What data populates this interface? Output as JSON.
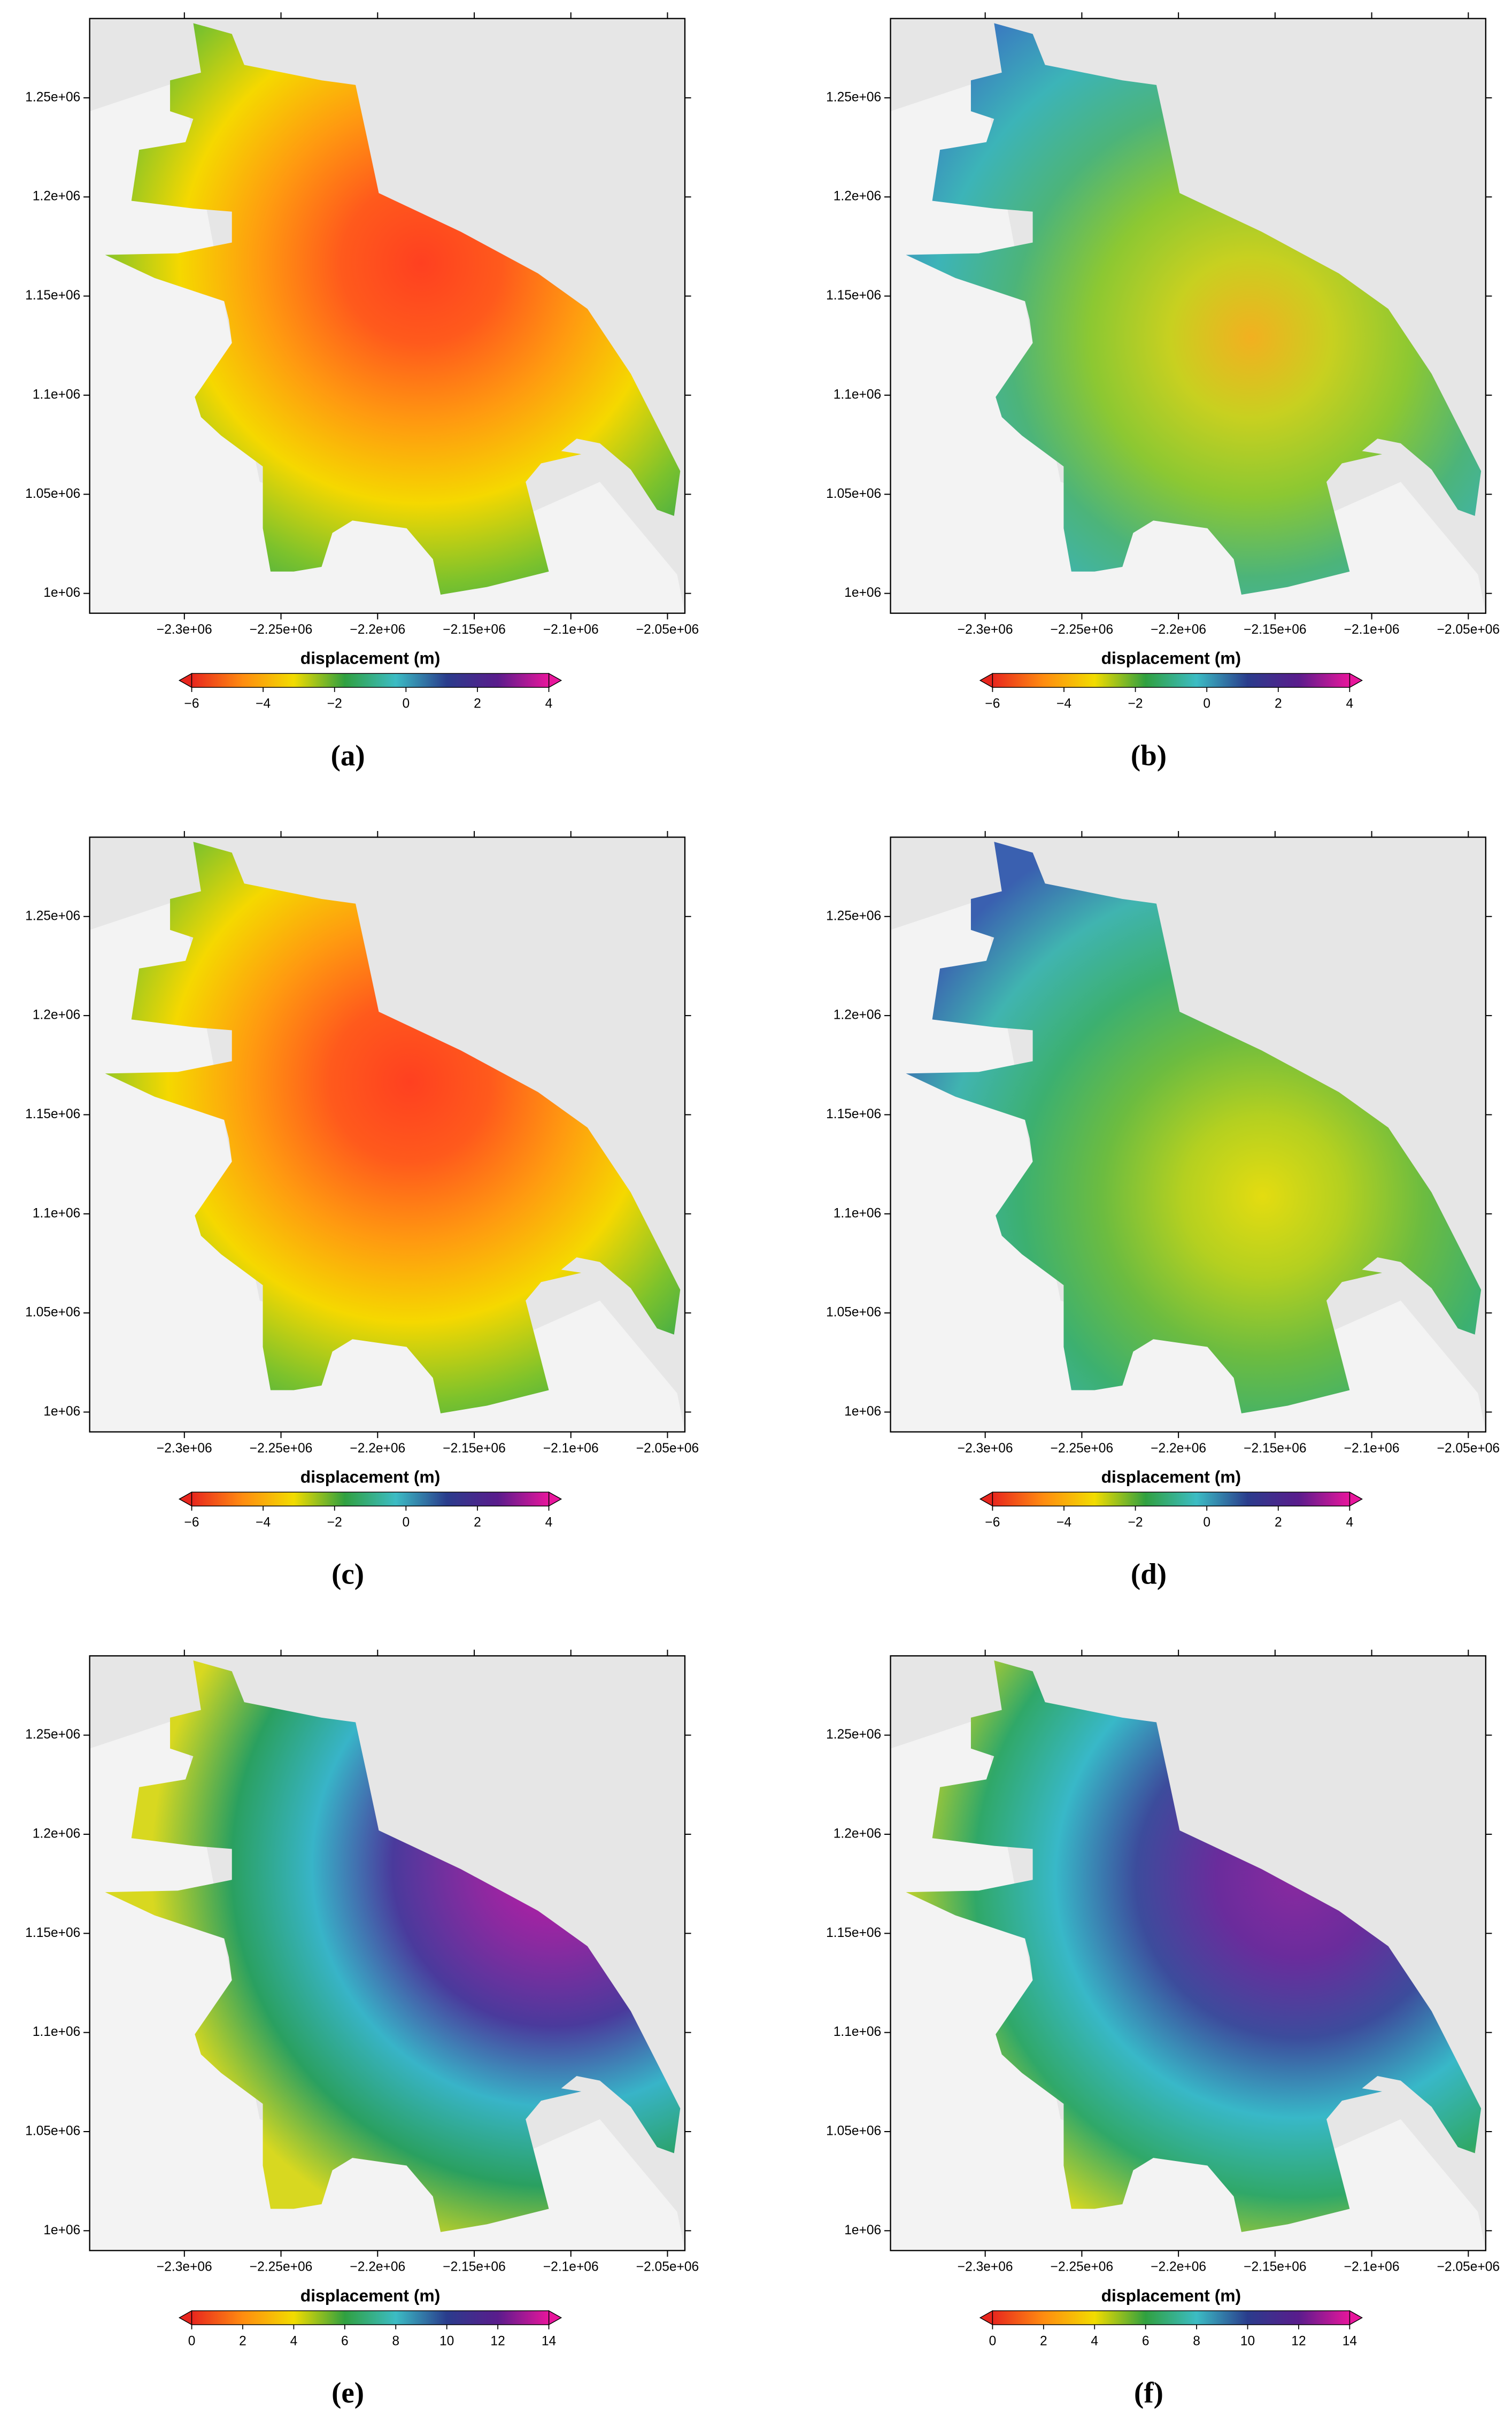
{
  "chart_data": [
    {
      "type": "map",
      "panel_label": "(a)",
      "xlim": [
        -2349000,
        -2041000
      ],
      "ylim": [
        990000,
        1290000
      ],
      "xticks": [
        {
          "value": -2300000,
          "label": "−2.3e+06"
        },
        {
          "value": -2250000,
          "label": "−2.25e+06"
        },
        {
          "value": -2200000,
          "label": "−2.2e+06"
        },
        {
          "value": -2150000,
          "label": "−2.15e+06"
        },
        {
          "value": -2100000,
          "label": "−2.1e+06"
        },
        {
          "value": -2050000,
          "label": "−2.05e+06"
        }
      ],
      "yticks": [
        {
          "value": 1000000,
          "label": "1e+06"
        },
        {
          "value": 1050000,
          "label": "1.05e+06"
        },
        {
          "value": 1100000,
          "label": "1.1e+06"
        },
        {
          "value": 1150000,
          "label": "1.15e+06"
        },
        {
          "value": 1200000,
          "label": "1.2e+06"
        },
        {
          "value": 1250000,
          "label": "1.25e+06"
        }
      ],
      "colorbar": {
        "label": "displacement (m)",
        "lim": [
          -6,
          4
        ],
        "ticks": [
          {
            "value": -6,
            "label": "−6"
          },
          {
            "value": -4,
            "label": "−4"
          },
          {
            "value": -2,
            "label": "−2"
          },
          0,
          2,
          4
        ],
        "colormap": [
          "#e8261e",
          "#ff8c10",
          "#f2dc00",
          "#30a040",
          "#3cbcc4",
          "#2a3c8c",
          "#5a1c8c",
          "#e8169c"
        ]
      }
    },
    {
      "type": "map",
      "panel_label": "(b)",
      "xlim": [
        -2349000,
        -2041000
      ],
      "ylim": [
        990000,
        1290000
      ],
      "xticks": [
        {
          "value": -2300000,
          "label": "−2.3e+06"
        },
        {
          "value": -2250000,
          "label": "−2.25e+06"
        },
        {
          "value": -2200000,
          "label": "−2.2e+06"
        },
        {
          "value": -2150000,
          "label": "−2.15e+06"
        },
        {
          "value": -2100000,
          "label": "−2.1e+06"
        },
        {
          "value": -2050000,
          "label": "−2.05e+06"
        }
      ],
      "yticks": [
        {
          "value": 1000000,
          "label": "1e+06"
        },
        {
          "value": 1050000,
          "label": "1.05e+06"
        },
        {
          "value": 1100000,
          "label": "1.1e+06"
        },
        {
          "value": 1150000,
          "label": "1.15e+06"
        },
        {
          "value": 1200000,
          "label": "1.2e+06"
        },
        {
          "value": 1250000,
          "label": "1.25e+06"
        }
      ],
      "colorbar": {
        "label": "displacement (m)",
        "lim": [
          -6,
          4
        ],
        "ticks": [
          {
            "value": -6,
            "label": "−6"
          },
          {
            "value": -4,
            "label": "−4"
          },
          {
            "value": -2,
            "label": "−2"
          },
          0,
          2,
          4
        ],
        "colormap": [
          "#e8261e",
          "#ff8c10",
          "#f2dc00",
          "#30a040",
          "#3cbcc4",
          "#2a3c8c",
          "#5a1c8c",
          "#e8169c"
        ]
      }
    },
    {
      "type": "map",
      "panel_label": "(c)",
      "xlim": [
        -2349000,
        -2041000
      ],
      "ylim": [
        990000,
        1290000
      ],
      "xticks": [
        {
          "value": -2300000,
          "label": "−2.3e+06"
        },
        {
          "value": -2250000,
          "label": "−2.25e+06"
        },
        {
          "value": -2200000,
          "label": "−2.2e+06"
        },
        {
          "value": -2150000,
          "label": "−2.15e+06"
        },
        {
          "value": -2100000,
          "label": "−2.1e+06"
        },
        {
          "value": -2050000,
          "label": "−2.05e+06"
        }
      ],
      "yticks": [
        {
          "value": 1000000,
          "label": "1e+06"
        },
        {
          "value": 1050000,
          "label": "1.05e+06"
        },
        {
          "value": 1100000,
          "label": "1.1e+06"
        },
        {
          "value": 1150000,
          "label": "1.15e+06"
        },
        {
          "value": 1200000,
          "label": "1.2e+06"
        },
        {
          "value": 1250000,
          "label": "1.25e+06"
        }
      ],
      "colorbar": {
        "label": "displacement (m)",
        "lim": [
          -6,
          4
        ],
        "ticks": [
          {
            "value": -6,
            "label": "−6"
          },
          {
            "value": -4,
            "label": "−4"
          },
          {
            "value": -2,
            "label": "−2"
          },
          0,
          2,
          4
        ],
        "colormap": [
          "#e8261e",
          "#ff8c10",
          "#f2dc00",
          "#30a040",
          "#3cbcc4",
          "#2a3c8c",
          "#5a1c8c",
          "#e8169c"
        ]
      }
    },
    {
      "type": "map",
      "panel_label": "(d)",
      "xlim": [
        -2349000,
        -2041000
      ],
      "ylim": [
        990000,
        1290000
      ],
      "xticks": [
        {
          "value": -2300000,
          "label": "−2.3e+06"
        },
        {
          "value": -2250000,
          "label": "−2.25e+06"
        },
        {
          "value": -2200000,
          "label": "−2.2e+06"
        },
        {
          "value": -2150000,
          "label": "−2.15e+06"
        },
        {
          "value": -2100000,
          "label": "−2.1e+06"
        },
        {
          "value": -2050000,
          "label": "−2.05e+06"
        }
      ],
      "yticks": [
        {
          "value": 1000000,
          "label": "1e+06"
        },
        {
          "value": 1050000,
          "label": "1.05e+06"
        },
        {
          "value": 1100000,
          "label": "1.1e+06"
        },
        {
          "value": 1150000,
          "label": "1.15e+06"
        },
        {
          "value": 1200000,
          "label": "1.2e+06"
        },
        {
          "value": 1250000,
          "label": "1.25e+06"
        }
      ],
      "colorbar": {
        "label": "displacement (m)",
        "lim": [
          -6,
          4
        ],
        "ticks": [
          {
            "value": -6,
            "label": "−6"
          },
          {
            "value": -4,
            "label": "−4"
          },
          {
            "value": -2,
            "label": "−2"
          },
          0,
          2,
          4
        ],
        "colormap": [
          "#e8261e",
          "#ff8c10",
          "#f2dc00",
          "#30a040",
          "#3cbcc4",
          "#2a3c8c",
          "#5a1c8c",
          "#e8169c"
        ]
      }
    },
    {
      "type": "map",
      "panel_label": "(e)",
      "xlim": [
        -2349000,
        -2041000
      ],
      "ylim": [
        990000,
        1290000
      ],
      "xticks": [
        {
          "value": -2300000,
          "label": "−2.3e+06"
        },
        {
          "value": -2250000,
          "label": "−2.25e+06"
        },
        {
          "value": -2200000,
          "label": "−2.2e+06"
        },
        {
          "value": -2150000,
          "label": "−2.15e+06"
        },
        {
          "value": -2100000,
          "label": "−2.1e+06"
        },
        {
          "value": -2050000,
          "label": "−2.05e+06"
        }
      ],
      "yticks": [
        {
          "value": 1000000,
          "label": "1e+06"
        },
        {
          "value": 1050000,
          "label": "1.05e+06"
        },
        {
          "value": 1100000,
          "label": "1.1e+06"
        },
        {
          "value": 1150000,
          "label": "1.15e+06"
        },
        {
          "value": 1200000,
          "label": "1.2e+06"
        },
        {
          "value": 1250000,
          "label": "1.25e+06"
        }
      ],
      "colorbar": {
        "label": "displacement (m)",
        "lim": [
          0,
          14
        ],
        "ticks": [
          0,
          2,
          4,
          6,
          8,
          10,
          12,
          14
        ],
        "colormap": [
          "#e8261e",
          "#ff8c10",
          "#f2dc00",
          "#30a040",
          "#3cbcc4",
          "#2a3c8c",
          "#5a1c8c",
          "#e8169c"
        ]
      }
    },
    {
      "type": "map",
      "panel_label": "(f)",
      "xlim": [
        -2349000,
        -2041000
      ],
      "ylim": [
        990000,
        1290000
      ],
      "xticks": [
        {
          "value": -2300000,
          "label": "−2.3e+06"
        },
        {
          "value": -2250000,
          "label": "−2.25e+06"
        },
        {
          "value": -2200000,
          "label": "−2.2e+06"
        },
        {
          "value": -2150000,
          "label": "−2.15e+06"
        },
        {
          "value": -2100000,
          "label": "−2.1e+06"
        },
        {
          "value": -2050000,
          "label": "−2.05e+06"
        }
      ],
      "yticks": [
        {
          "value": 1000000,
          "label": "1e+06"
        },
        {
          "value": 1050000,
          "label": "1.05e+06"
        },
        {
          "value": 1100000,
          "label": "1.1e+06"
        },
        {
          "value": 1150000,
          "label": "1.15e+06"
        },
        {
          "value": 1200000,
          "label": "1.2e+06"
        },
        {
          "value": 1250000,
          "label": "1.25e+06"
        }
      ],
      "colorbar": {
        "label": "displacement (m)",
        "lim": [
          0,
          14
        ],
        "ticks": [
          0,
          2,
          4,
          6,
          8,
          10,
          12,
          14
        ],
        "colormap": [
          "#e8261e",
          "#ff8c10",
          "#f2dc00",
          "#30a040",
          "#3cbcc4",
          "#2a3c8c",
          "#5a1c8c",
          "#e8169c"
        ]
      }
    }
  ]
}
